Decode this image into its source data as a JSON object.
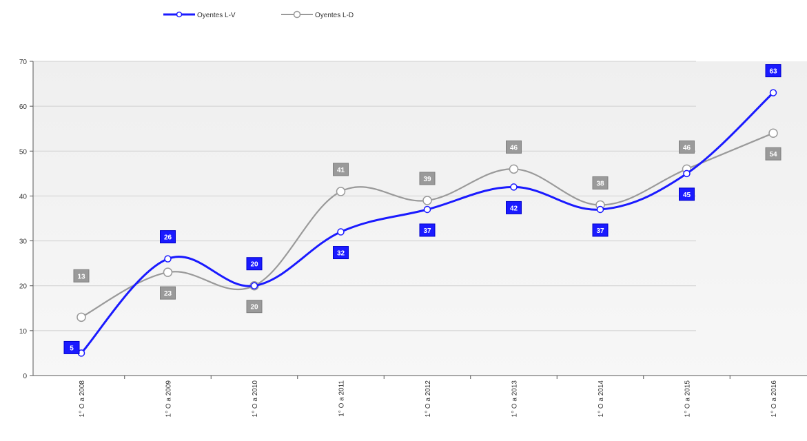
{
  "chart_data": {
    "type": "line",
    "categories": [
      "1° O a 2008",
      "1° O a 2009",
      "1° O a 2010",
      "1° O a 2011",
      "1° O a 2012",
      "1° O a 2013",
      "1° O a 2014",
      "1° O a 2015",
      "1° O a 2016"
    ],
    "series": [
      {
        "name": "Oyentes L-V",
        "values": [
          5,
          26,
          20,
          32,
          37,
          42,
          37,
          45,
          63
        ],
        "labels": [
          "5",
          "26",
          "20",
          "32",
          "37",
          "42",
          "37",
          "45",
          "63"
        ],
        "color": "#1a1aff"
      },
      {
        "name": "Oyentes L-D",
        "values": [
          13,
          23,
          20,
          41,
          39,
          46,
          38,
          46,
          54
        ],
        "labels": [
          "13",
          "23",
          "20",
          "41",
          "39",
          "46",
          "38",
          "46",
          "54"
        ],
        "color": "#9a9a9a"
      }
    ],
    "yticks": [
      "0",
      "10",
      "20",
      "30",
      "40",
      "50",
      "60",
      "70"
    ],
    "ylim": [
      0,
      70
    ],
    "grid": true,
    "legend": "top-left"
  }
}
